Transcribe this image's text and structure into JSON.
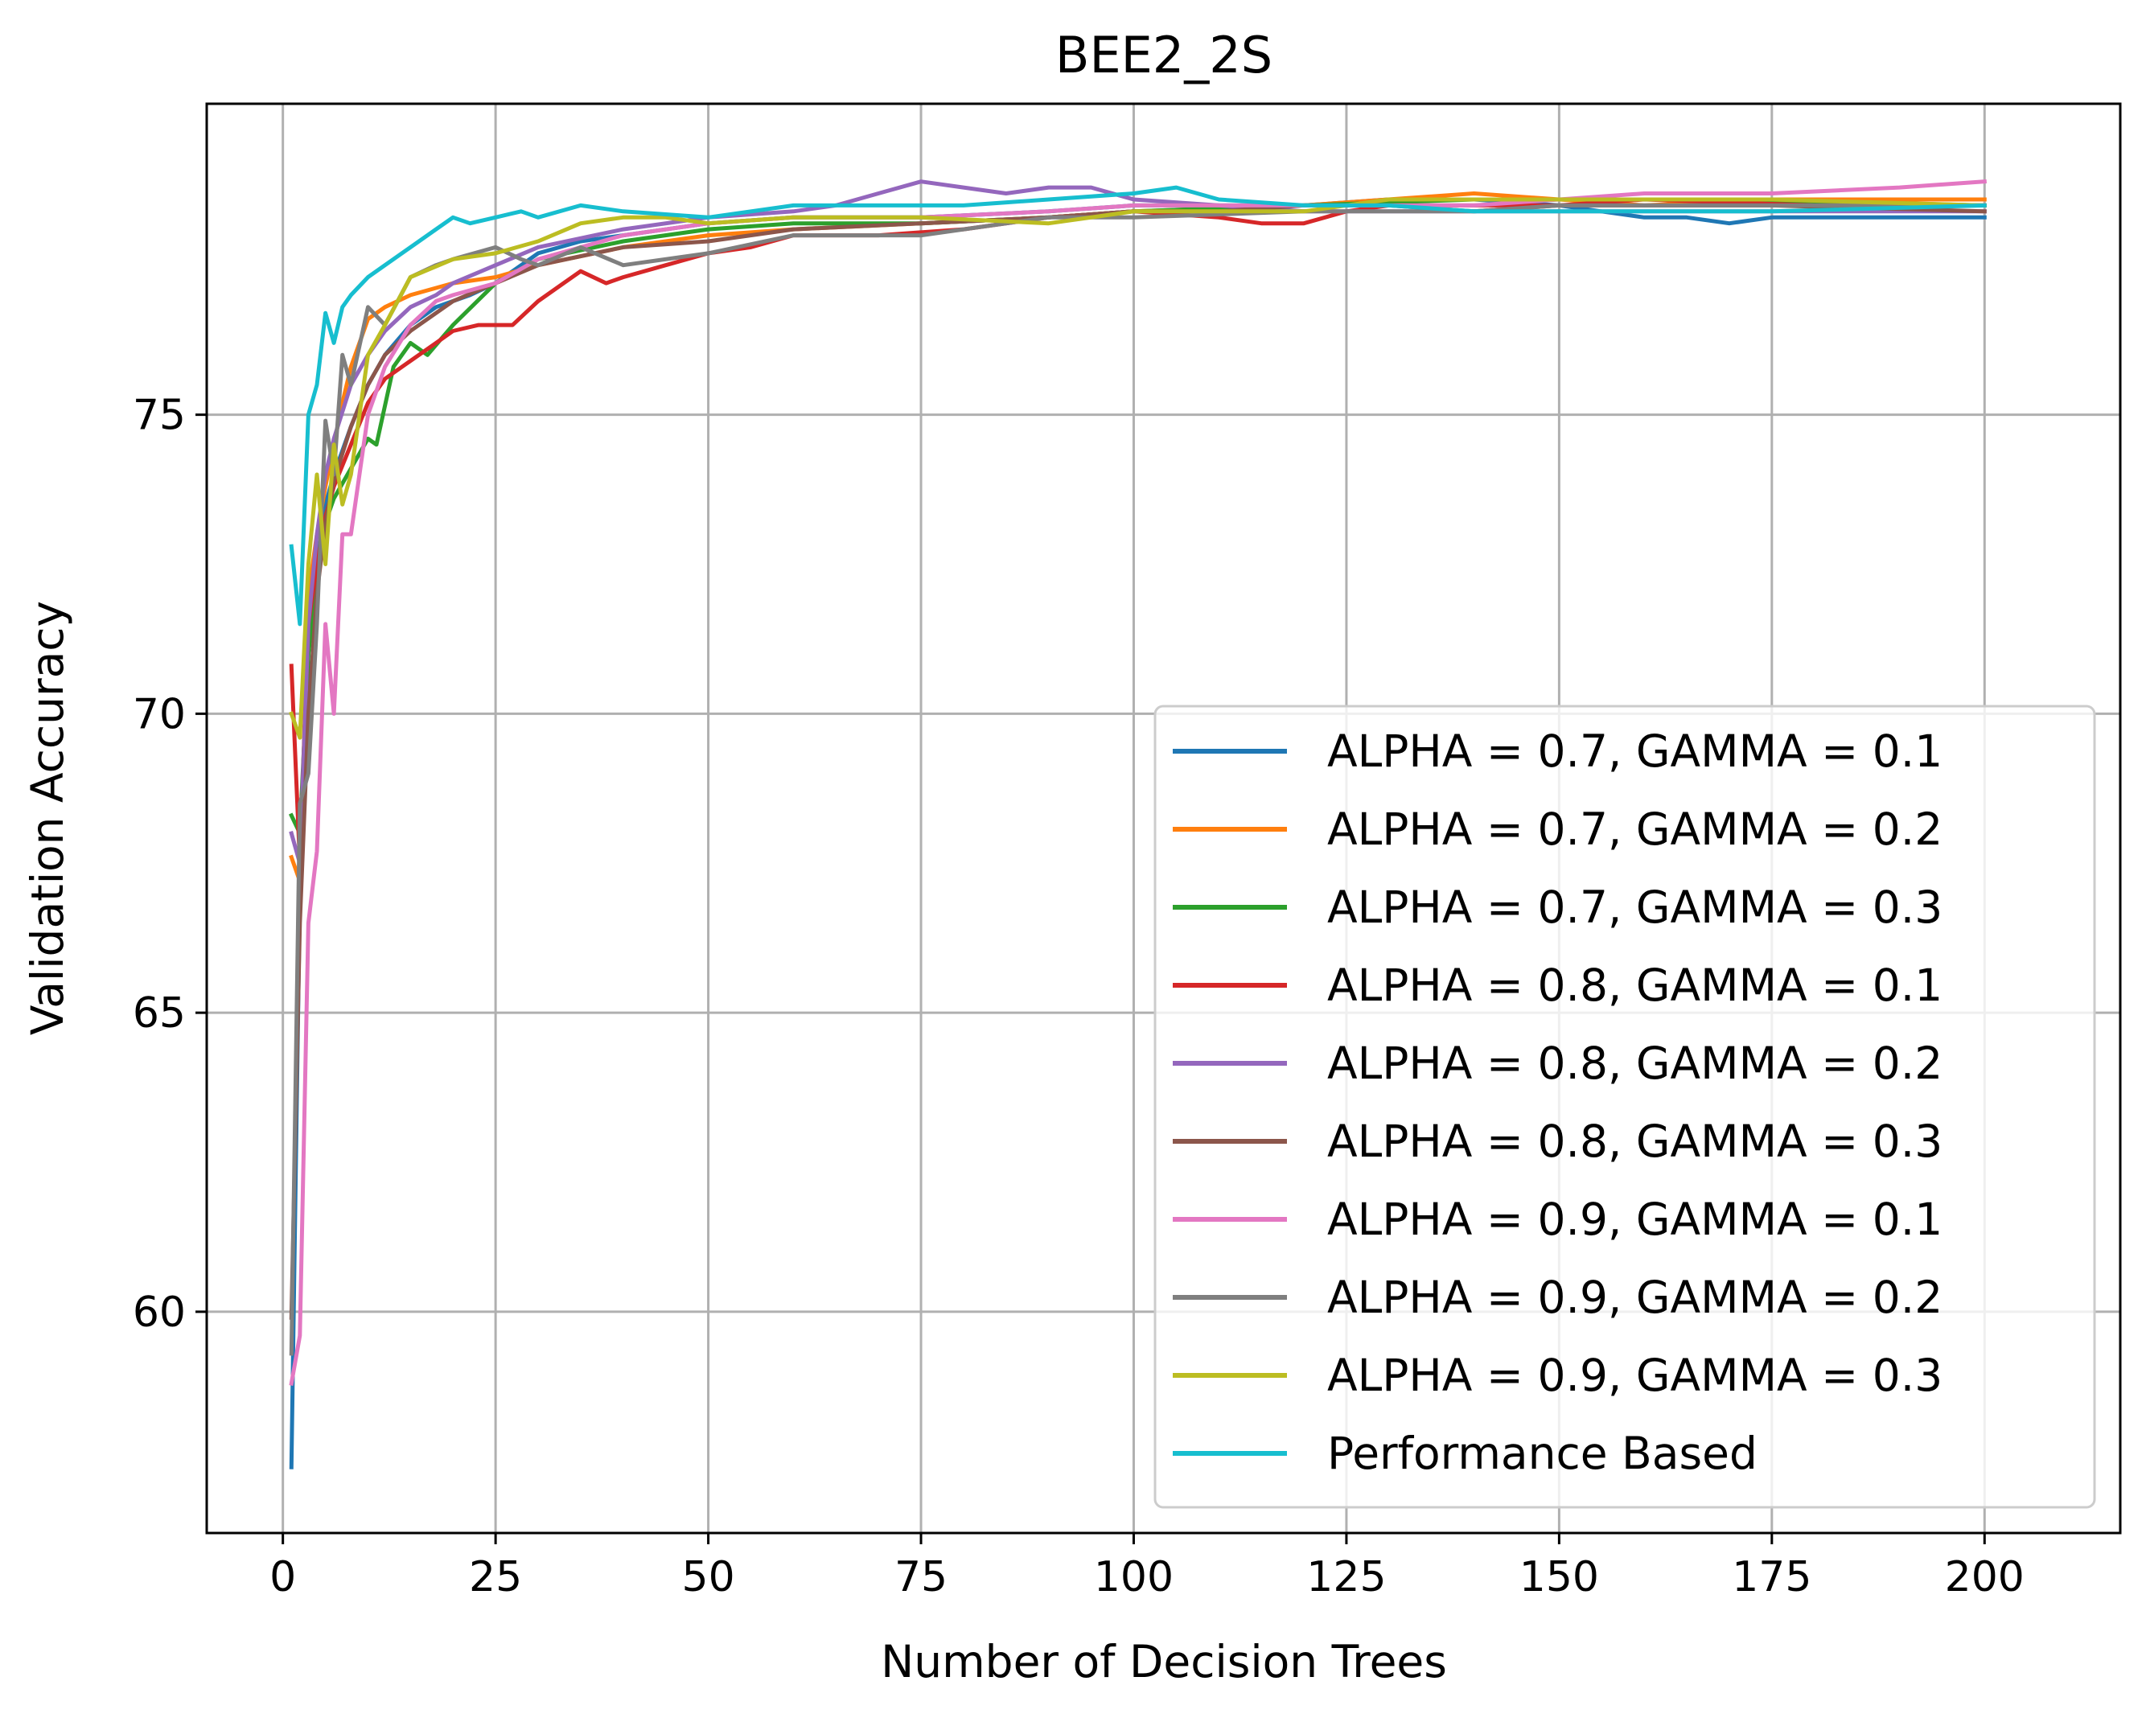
{
  "chart_data": {
    "type": "line",
    "title": "BEE2_2S",
    "xlabel": "Number of Decision Trees",
    "ylabel": "Validation Accuracy",
    "xlim": [
      -8.95,
      215.95
    ],
    "ylim": [
      56.3,
      80.2
    ],
    "xticks": [
      0,
      25,
      50,
      75,
      100,
      125,
      150,
      175,
      200
    ],
    "xtick_labels": [
      "0",
      "25",
      "50",
      "75",
      "100",
      "125",
      "150",
      "175",
      "200"
    ],
    "yticks": [
      60,
      65,
      70,
      75
    ],
    "ytick_labels": [
      "60",
      "65",
      "70",
      "75"
    ],
    "grid": true,
    "legend_position": "lower-right",
    "series": [
      {
        "name": "ALPHA = 0.7, GAMMA = 0.1",
        "color": "#1f77b4",
        "x": [
          1,
          2,
          3,
          4,
          5,
          6,
          8,
          10,
          12,
          15,
          18,
          22,
          25,
          30,
          35,
          40,
          50,
          60,
          75,
          90,
          100,
          110,
          120,
          130,
          140,
          150,
          160,
          165,
          170,
          175,
          180,
          190,
          200
        ],
        "y": [
          57.4,
          67.0,
          71.0,
          72.5,
          73.5,
          74.0,
          74.8,
          75.5,
          76.0,
          76.5,
          76.8,
          77.0,
          77.2,
          77.7,
          77.9,
          78.0,
          78.2,
          78.3,
          78.3,
          78.4,
          78.5,
          78.5,
          78.5,
          78.6,
          78.6,
          78.5,
          78.3,
          78.3,
          78.2,
          78.3,
          78.3,
          78.3,
          78.3
        ]
      },
      {
        "name": "ALPHA = 0.7, GAMMA = 0.2",
        "color": "#ff7f0e",
        "x": [
          1,
          2,
          3,
          4,
          5,
          6,
          7,
          8,
          10,
          12,
          15,
          20,
          25,
          30,
          40,
          50,
          60,
          75,
          90,
          100,
          120,
          140,
          150,
          160,
          175,
          200
        ],
        "y": [
          67.6,
          67.2,
          72.0,
          73.0,
          73.8,
          74.5,
          75.2,
          75.8,
          76.6,
          76.8,
          77.0,
          77.2,
          77.3,
          77.5,
          77.8,
          78.0,
          78.1,
          78.2,
          78.3,
          78.4,
          78.5,
          78.7,
          78.6,
          78.5,
          78.6,
          78.6
        ]
      },
      {
        "name": "ALPHA = 0.7, GAMMA = 0.3",
        "color": "#2ca02c",
        "x": [
          1,
          2,
          3,
          4,
          5,
          6,
          8,
          10,
          11,
          13,
          15,
          17,
          20,
          25,
          30,
          40,
          50,
          60,
          75,
          90,
          100,
          120,
          140,
          150,
          170,
          200
        ],
        "y": [
          68.3,
          68.0,
          71.0,
          72.3,
          73.2,
          73.6,
          74.1,
          74.6,
          74.5,
          75.8,
          76.2,
          76.0,
          76.5,
          77.2,
          77.6,
          77.9,
          78.1,
          78.2,
          78.2,
          78.3,
          78.4,
          78.5,
          78.6,
          78.6,
          78.6,
          78.5
        ]
      },
      {
        "name": "ALPHA = 0.8, GAMMA = 0.1",
        "color": "#d62728",
        "x": [
          1,
          2,
          3,
          4,
          5,
          6,
          8,
          10,
          12,
          15,
          18,
          20,
          23,
          25,
          27,
          30,
          33,
          35,
          38,
          40,
          45,
          50,
          55,
          60,
          70,
          80,
          90,
          100,
          110,
          115,
          120,
          125,
          130,
          140,
          150,
          160,
          180,
          200
        ],
        "y": [
          70.8,
          67.5,
          71.5,
          72.5,
          73.3,
          73.8,
          74.5,
          75.2,
          75.6,
          75.9,
          76.2,
          76.4,
          76.5,
          76.5,
          76.5,
          76.9,
          77.2,
          77.4,
          77.2,
          77.3,
          77.5,
          77.7,
          77.8,
          78.0,
          78.0,
          78.1,
          78.3,
          78.4,
          78.3,
          78.2,
          78.2,
          78.4,
          78.5,
          78.5,
          78.5,
          78.6,
          78.5,
          78.5
        ]
      },
      {
        "name": "ALPHA = 0.8, GAMMA = 0.2",
        "color": "#9467bd",
        "x": [
          1,
          2,
          3,
          4,
          5,
          6,
          8,
          10,
          12,
          15,
          18,
          20,
          25,
          30,
          40,
          50,
          60,
          65,
          70,
          75,
          80,
          85,
          90,
          95,
          100,
          110,
          120,
          130,
          150,
          160,
          175,
          200
        ],
        "y": [
          68.0,
          67.5,
          71.5,
          73.0,
          74.0,
          74.6,
          75.5,
          76.0,
          76.4,
          76.8,
          77.0,
          77.2,
          77.5,
          77.8,
          78.1,
          78.3,
          78.4,
          78.5,
          78.7,
          78.9,
          78.8,
          78.7,
          78.8,
          78.8,
          78.6,
          78.5,
          78.4,
          78.4,
          78.4,
          78.4,
          78.4,
          78.4
        ]
      },
      {
        "name": "ALPHA = 0.8, GAMMA = 0.3",
        "color": "#8c564b",
        "x": [
          1,
          2,
          3,
          4,
          5,
          6,
          8,
          10,
          12,
          15,
          20,
          25,
          30,
          40,
          50,
          60,
          75,
          90,
          100,
          110,
          120,
          130,
          140,
          150,
          175,
          200
        ],
        "y": [
          59.9,
          66.5,
          70.0,
          72.0,
          73.2,
          73.9,
          74.8,
          75.5,
          76.0,
          76.4,
          76.9,
          77.2,
          77.5,
          77.8,
          77.9,
          78.1,
          78.2,
          78.3,
          78.4,
          78.4,
          78.5,
          78.5,
          78.4,
          78.5,
          78.5,
          78.4
        ]
      },
      {
        "name": "ALPHA = 0.9, GAMMA = 0.1",
        "color": "#e377c2",
        "x": [
          1,
          2,
          3,
          4,
          5,
          6,
          7,
          8,
          10,
          12,
          15,
          18,
          20,
          25,
          30,
          40,
          50,
          60,
          75,
          90,
          100,
          120,
          140,
          150,
          160,
          175,
          190,
          200
        ],
        "y": [
          58.8,
          59.6,
          66.5,
          67.7,
          71.5,
          70.0,
          73.0,
          73.0,
          75.0,
          75.8,
          76.5,
          76.9,
          77.0,
          77.2,
          77.6,
          78.0,
          78.2,
          78.3,
          78.3,
          78.4,
          78.5,
          78.5,
          78.5,
          78.6,
          78.7,
          78.7,
          78.8,
          78.9
        ]
      },
      {
        "name": "ALPHA = 0.9, GAMMA = 0.2",
        "color": "#7f7f7f",
        "x": [
          1,
          2,
          3,
          4,
          5,
          6,
          7,
          8,
          10,
          12,
          15,
          18,
          20,
          25,
          28,
          30,
          35,
          40,
          50,
          60,
          70,
          75,
          90,
          100,
          120,
          140,
          150,
          175,
          200
        ],
        "y": [
          59.3,
          68.5,
          69.0,
          71.5,
          74.9,
          74.0,
          76.0,
          75.5,
          76.8,
          76.5,
          77.3,
          77.5,
          77.6,
          77.8,
          77.6,
          77.5,
          77.8,
          77.5,
          77.7,
          78.0,
          78.0,
          78.0,
          78.3,
          78.3,
          78.4,
          78.4,
          78.5,
          78.5,
          78.5
        ]
      },
      {
        "name": "ALPHA = 0.9, GAMMA = 0.3",
        "color": "#bcbd22",
        "x": [
          1,
          2,
          3,
          4,
          5,
          6,
          7,
          8,
          10,
          12,
          15,
          20,
          25,
          30,
          35,
          40,
          45,
          50,
          60,
          75,
          90,
          100,
          120,
          130,
          140,
          150,
          175,
          200
        ],
        "y": [
          70.0,
          69.6,
          72.5,
          74.0,
          72.5,
          74.5,
          73.5,
          74.0,
          76.0,
          76.5,
          77.3,
          77.6,
          77.7,
          77.9,
          78.2,
          78.3,
          78.3,
          78.2,
          78.3,
          78.3,
          78.2,
          78.4,
          78.4,
          78.6,
          78.6,
          78.6,
          78.6,
          78.5
        ]
      },
      {
        "name": "Performance Based",
        "color": "#17becf",
        "x": [
          1,
          2,
          3,
          4,
          5,
          6,
          7,
          8,
          10,
          12,
          15,
          18,
          20,
          22,
          25,
          28,
          30,
          35,
          40,
          50,
          60,
          70,
          80,
          90,
          100,
          105,
          110,
          120,
          130,
          140,
          150,
          175,
          200
        ],
        "y": [
          72.8,
          71.5,
          75.0,
          75.5,
          76.7,
          76.2,
          76.8,
          77.0,
          77.3,
          77.5,
          77.8,
          78.1,
          78.3,
          78.2,
          78.3,
          78.4,
          78.3,
          78.5,
          78.4,
          78.3,
          78.5,
          78.5,
          78.5,
          78.6,
          78.7,
          78.8,
          78.6,
          78.5,
          78.5,
          78.4,
          78.4,
          78.4,
          78.5
        ]
      }
    ]
  }
}
